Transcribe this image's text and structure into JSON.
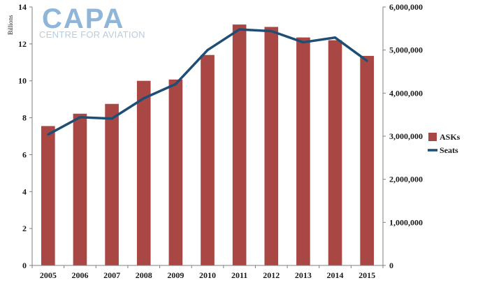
{
  "logo": {
    "name": "CAPA",
    "tagline": "CENTRE FOR AVIATION"
  },
  "chart_data": {
    "type": "bar",
    "categories": [
      "2005",
      "2006",
      "2007",
      "2008",
      "2009",
      "2010",
      "2011",
      "2012",
      "2013",
      "2014",
      "2015"
    ],
    "series": [
      {
        "name": "ASKs",
        "type": "bar",
        "axis": "left",
        "color": "#a84744",
        "values": [
          7.55,
          8.22,
          8.75,
          10.0,
          10.07,
          11.4,
          13.05,
          12.92,
          12.35,
          12.2,
          11.35
        ]
      },
      {
        "name": "Seats",
        "type": "line",
        "axis": "right",
        "color": "#1f4e74",
        "values": [
          3040000,
          3440000,
          3410000,
          3880000,
          4210000,
          5000000,
          5480000,
          5440000,
          5180000,
          5290000,
          4750000
        ]
      }
    ],
    "y_left": {
      "label": "Billions",
      "range": [
        0,
        14
      ],
      "ticks": [
        "0",
        "2",
        "4",
        "6",
        "8",
        "10",
        "12",
        "14"
      ],
      "tick_values": [
        0,
        2,
        4,
        6,
        8,
        10,
        12,
        14
      ]
    },
    "y_right": {
      "label": "",
      "range": [
        0,
        6000000
      ],
      "ticks": [
        "0",
        "1,000,000",
        "2,000,000",
        "3,000,000",
        "4,000,000",
        "5,000,000",
        "6,000,000"
      ],
      "tick_values": [
        0,
        1000000,
        2000000,
        3000000,
        4000000,
        5000000,
        6000000
      ]
    },
    "grid": false,
    "legend_position": "right"
  }
}
